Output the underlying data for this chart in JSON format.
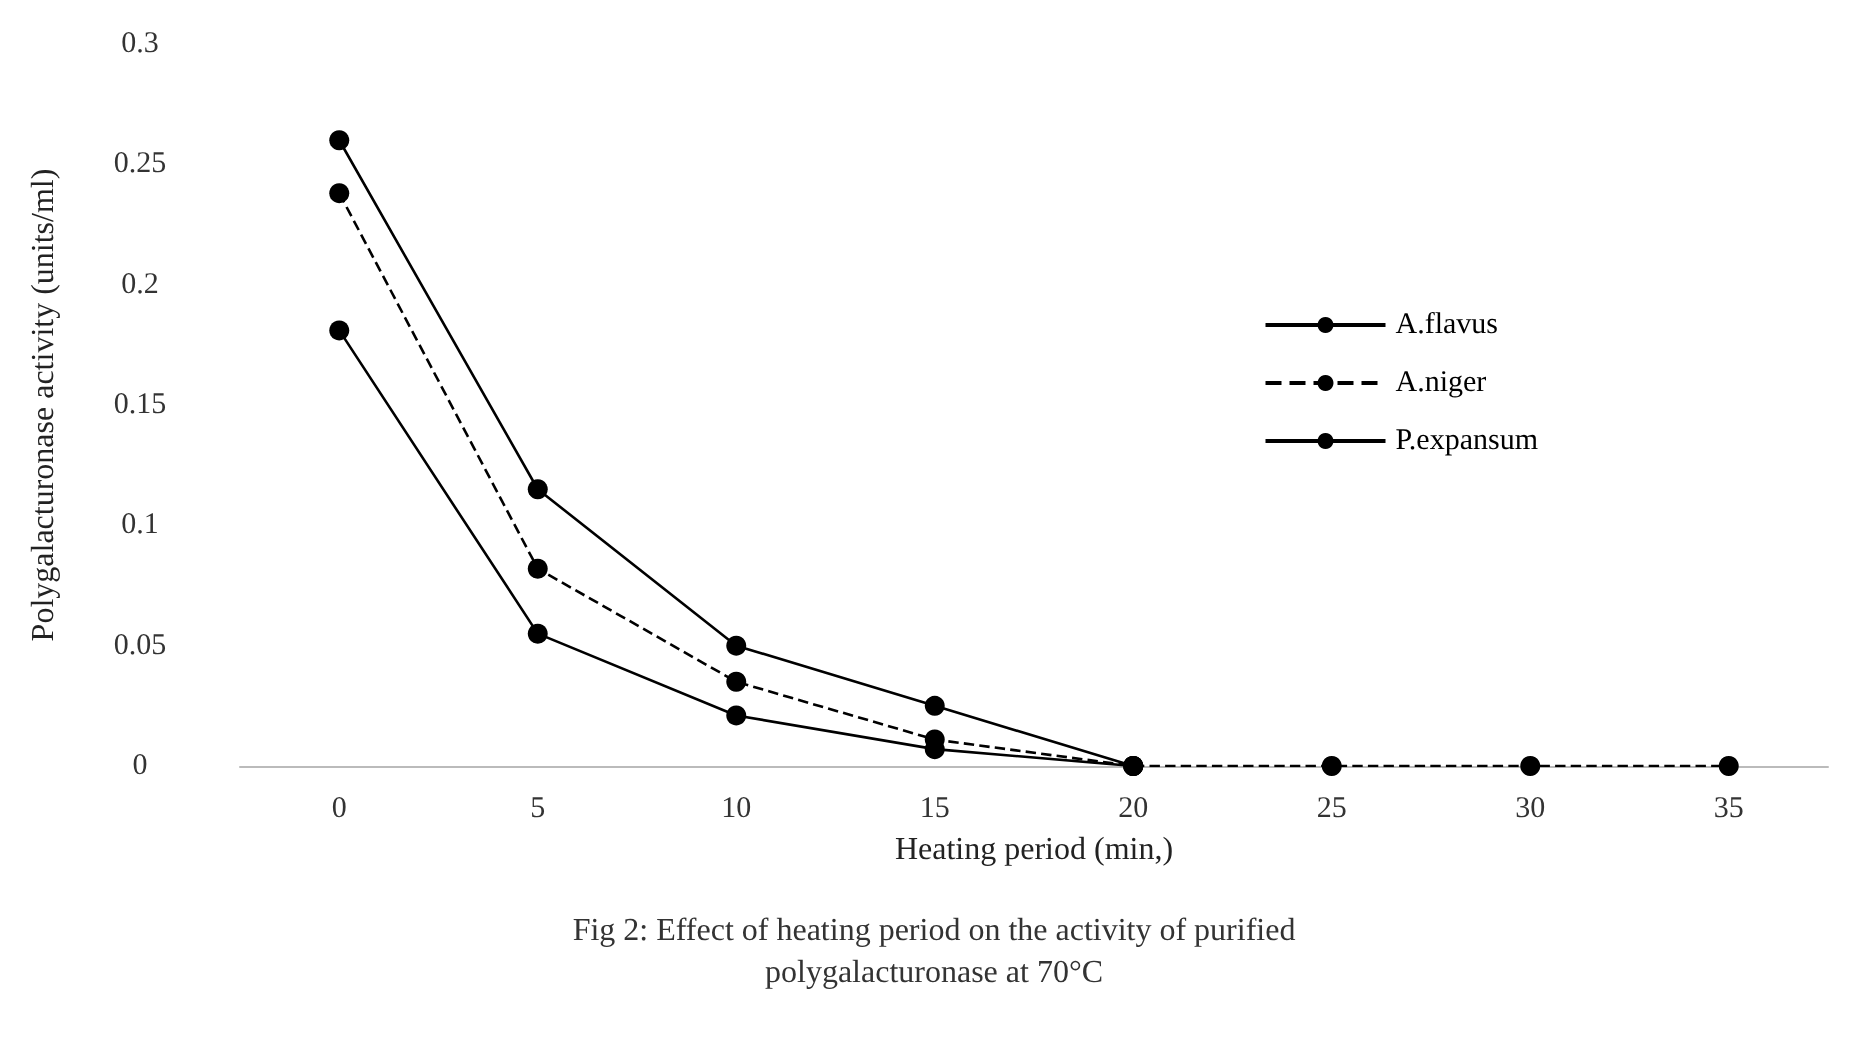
{
  "chart_data": {
    "type": "line",
    "xlabel": "Heating period (min,)",
    "ylabel": "Polygalacturonase activity (units/ml)",
    "categories": [
      "0",
      "5",
      "10",
      "15",
      "20",
      "25",
      "30",
      "35"
    ],
    "series": [
      {
        "name": "A.flavus",
        "color": "#000000",
        "line_style": "solid",
        "values": [
          0.26,
          0.115,
          0.05,
          0.025,
          0,
          null,
          null,
          null
        ]
      },
      {
        "name": "A.niger",
        "color": "#000000",
        "line_style": "dashed",
        "values": [
          0.238,
          0.082,
          0.035,
          0.011,
          0,
          0,
          0,
          0
        ]
      },
      {
        "name": "P.expansum",
        "color": "#000000",
        "line_style": "solid",
        "values": [
          0.181,
          0.055,
          0.021,
          0.007,
          0,
          null,
          null,
          null
        ]
      }
    ],
    "ylim": [
      0,
      0.3
    ],
    "yticks": [
      0,
      0.05,
      0.1,
      0.15,
      0.2,
      0.25,
      0.3
    ],
    "grid": false,
    "legend": "right",
    "marker": "circle",
    "annotations": [
      "Fig 2: Effect of heating period on the activity of purified\npolygalacturonase at 70°C"
    ]
  }
}
